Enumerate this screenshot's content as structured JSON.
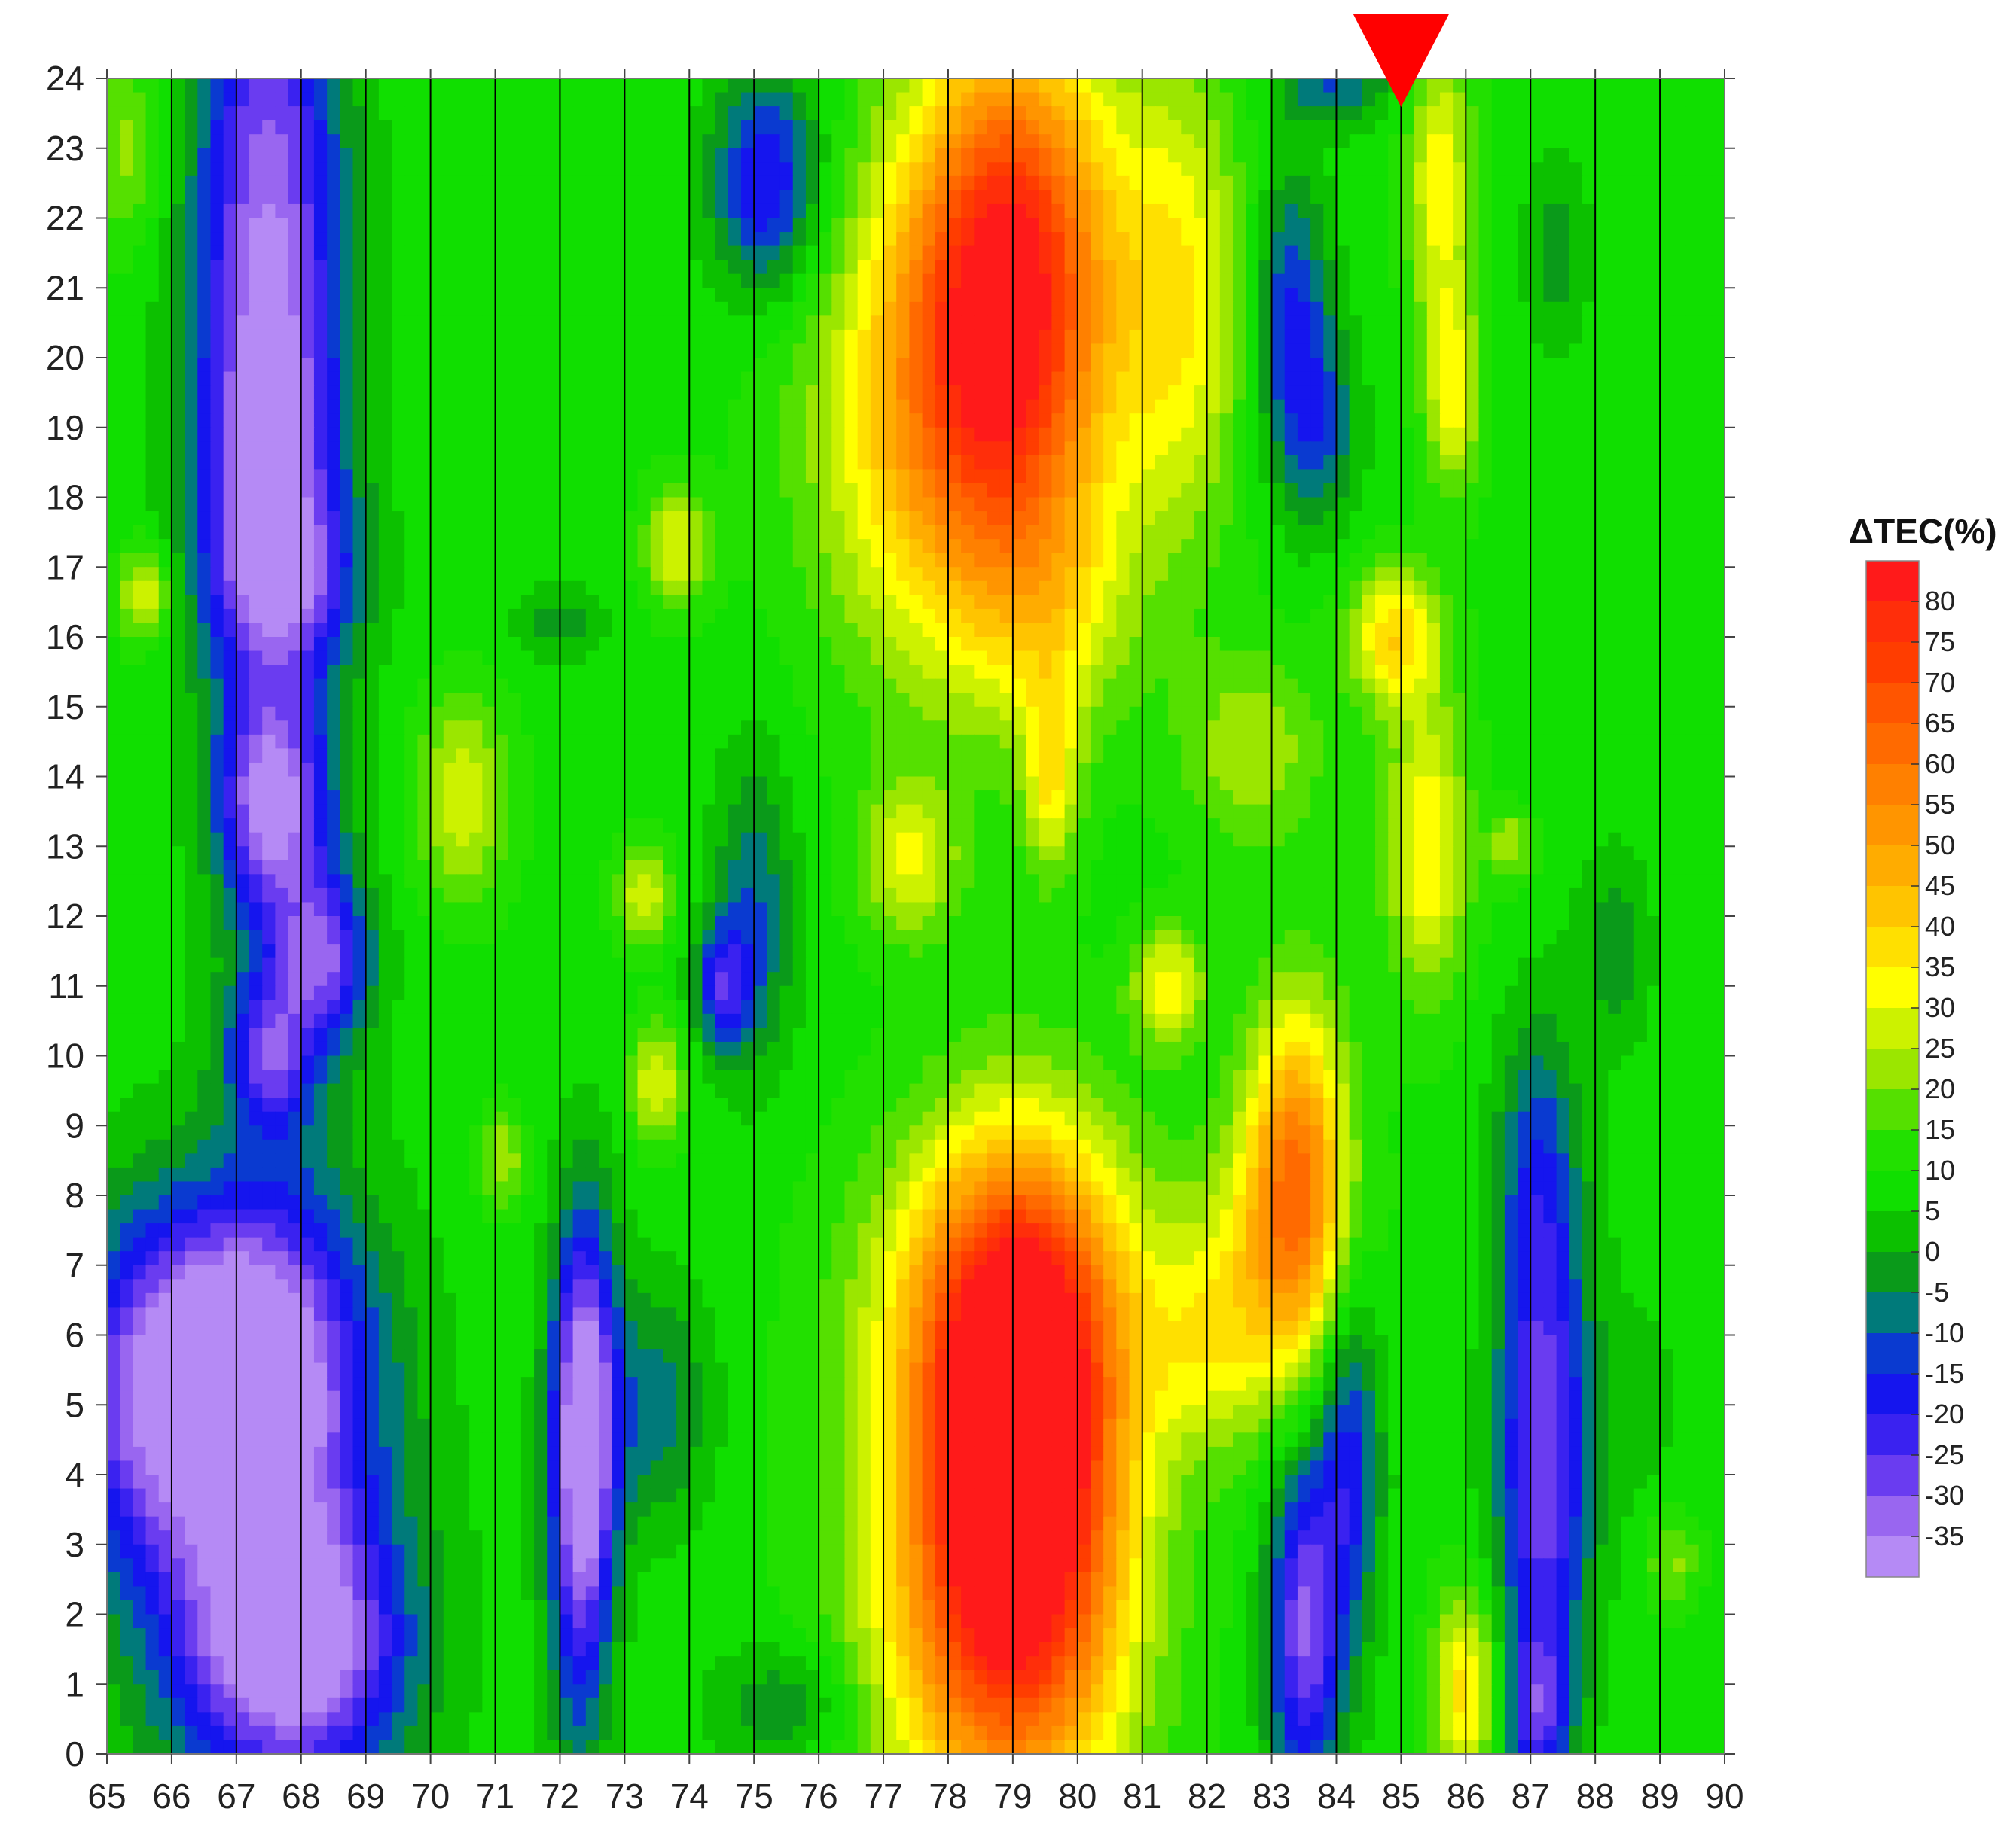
{
  "chart_data": {
    "type": "heatmap",
    "subtype": "filled-contour",
    "title": "",
    "xlabel": "",
    "ylabel": "",
    "xlim": [
      65,
      90
    ],
    "ylim": [
      0,
      24
    ],
    "x_ticks": [
      "65",
      "66",
      "67",
      "68",
      "69",
      "70",
      "71",
      "72",
      "73",
      "74",
      "75",
      "76",
      "77",
      "78",
      "79",
      "80",
      "81",
      "82",
      "83",
      "84",
      "85",
      "86",
      "87",
      "88",
      "89",
      "90"
    ],
    "y_ticks": [
      "0",
      "1",
      "2",
      "3",
      "4",
      "5",
      "6",
      "7",
      "8",
      "9",
      "10",
      "11",
      "12",
      "13",
      "14",
      "15",
      "16",
      "17",
      "18",
      "19",
      "20",
      "21",
      "22",
      "23",
      "24"
    ],
    "vertical_gridlines_at": [
      66,
      67,
      68,
      69,
      70,
      71,
      72,
      73,
      74,
      75,
      76,
      77,
      78,
      79,
      80,
      81,
      82,
      83,
      84,
      85,
      86,
      87,
      88,
      89
    ],
    "background_value": 8,
    "marker": {
      "shape": "down-triangle",
      "x": 85,
      "color": "#ff0000"
    },
    "colorbar": {
      "title": "ΔTEC(%)",
      "labels": [
        "80",
        "75",
        "70",
        "65",
        "60",
        "55",
        "50",
        "45",
        "40",
        "35",
        "30",
        "25",
        "20",
        "15",
        "10",
        "5",
        "0",
        "-5",
        "-10",
        "-15",
        "-20",
        "-25",
        "-30",
        "-35"
      ],
      "bands": [
        {
          "min": 80,
          "color": "#ff1a1a"
        },
        {
          "min": 75,
          "color": "#ff2e0a"
        },
        {
          "min": 70,
          "color": "#ff3d00"
        },
        {
          "min": 65,
          "color": "#ff5500"
        },
        {
          "min": 60,
          "color": "#ff6a00"
        },
        {
          "min": 55,
          "color": "#ff8000"
        },
        {
          "min": 50,
          "color": "#ff9500"
        },
        {
          "min": 45,
          "color": "#ffac00"
        },
        {
          "min": 40,
          "color": "#ffc400"
        },
        {
          "min": 35,
          "color": "#ffe000"
        },
        {
          "min": 30,
          "color": "#ffff00"
        },
        {
          "min": 25,
          "color": "#ccf200"
        },
        {
          "min": 20,
          "color": "#9be600"
        },
        {
          "min": 15,
          "color": "#55e000"
        },
        {
          "min": 10,
          "color": "#22e000"
        },
        {
          "min": 5,
          "color": "#10df00"
        },
        {
          "min": 0,
          "color": "#0cc000"
        },
        {
          "min": -5,
          "color": "#0a9a1a"
        },
        {
          "min": -10,
          "color": "#007a7a"
        },
        {
          "min": -15,
          "color": "#0a3ad0"
        },
        {
          "min": -20,
          "color": "#1515ee"
        },
        {
          "min": -25,
          "color": "#3a22f0"
        },
        {
          "min": -30,
          "color": "#6a3cf0"
        },
        {
          "min": -35,
          "color": "#9966f0"
        },
        {
          "min": -1000,
          "color": "#b58af5"
        }
      ]
    },
    "features": [
      {
        "x": 67.5,
        "y": 21.5,
        "sx": 0.8,
        "sy": 4.0,
        "value": -34
      },
      {
        "x": 67.5,
        "y": 18.0,
        "sx": 0.8,
        "sy": 2.0,
        "value": -10
      },
      {
        "x": 67.8,
        "y": 16.9,
        "sx": 0.8,
        "sy": 0.8,
        "value": -10
      },
      {
        "x": 67.5,
        "y": 13.6,
        "sx": 0.55,
        "sy": 1.0,
        "value": -22
      },
      {
        "x": 68.4,
        "y": 11.4,
        "sx": 0.5,
        "sy": 0.8,
        "value": -20
      },
      {
        "x": 67.5,
        "y": 10.0,
        "sx": 0.45,
        "sy": 0.7,
        "value": -18
      },
      {
        "x": 67.8,
        "y": 12.3,
        "sx": 0.7,
        "sy": 2.5,
        "value": -8
      },
      {
        "x": 67.1,
        "y": 5.6,
        "sx": 1.2,
        "sy": 1.6,
        "value": -34
      },
      {
        "x": 67.9,
        "y": 1.5,
        "sx": 1.2,
        "sy": 1.3,
        "value": -30
      },
      {
        "x": 67.5,
        "y": 3.5,
        "sx": 1.4,
        "sy": 3.0,
        "value": -17
      },
      {
        "x": 65.5,
        "y": 5.0,
        "sx": 1.0,
        "sy": 1.8,
        "value": -15
      },
      {
        "x": 72.4,
        "y": 5.0,
        "sx": 0.35,
        "sy": 2.0,
        "value": -30
      },
      {
        "x": 72.3,
        "y": 3.0,
        "sx": 0.35,
        "sy": 2.5,
        "value": -17
      },
      {
        "x": 73.5,
        "y": 5.0,
        "sx": 0.6,
        "sy": 1.2,
        "value": -8
      },
      {
        "x": 75.2,
        "y": 22.5,
        "sx": 0.6,
        "sy": 1.1,
        "value": -22
      },
      {
        "x": 75.0,
        "y": 12.0,
        "sx": 0.45,
        "sy": 1.6,
        "value": -10
      },
      {
        "x": 74.5,
        "y": 11.0,
        "sx": 0.3,
        "sy": 0.6,
        "value": -18
      },
      {
        "x": 79.0,
        "y": 21.3,
        "sx": 1.1,
        "sy": 2.5,
        "value": 72
      },
      {
        "x": 78.0,
        "y": 19.0,
        "sx": 1.4,
        "sy": 2.5,
        "value": 45
      },
      {
        "x": 81.6,
        "y": 20.8,
        "sx": 0.7,
        "sy": 2.4,
        "value": 33
      },
      {
        "x": 79.6,
        "y": 16.5,
        "sx": 0.9,
        "sy": 1.3,
        "value": 25
      },
      {
        "x": 79.1,
        "y": 4.6,
        "sx": 1.0,
        "sy": 2.5,
        "value": 78
      },
      {
        "x": 78.8,
        "y": 2.0,
        "sx": 1.4,
        "sy": 2.5,
        "value": 55
      },
      {
        "x": 79.0,
        "y": 6.5,
        "sx": 1.5,
        "sy": 1.8,
        "value": 42
      },
      {
        "x": 83.4,
        "y": 8.5,
        "sx": 0.55,
        "sy": 1.7,
        "value": 52
      },
      {
        "x": 83.0,
        "y": 6.8,
        "sx": 0.9,
        "sy": 1.5,
        "value": 30
      },
      {
        "x": 83.5,
        "y": 1.8,
        "sx": 0.4,
        "sy": 1.8,
        "value": -30
      },
      {
        "x": 84.2,
        "y": 4.5,
        "sx": 0.35,
        "sy": 2.0,
        "value": -18
      },
      {
        "x": 87.2,
        "y": 4.2,
        "sx": 0.5,
        "sy": 2.6,
        "value": -30
      },
      {
        "x": 87.1,
        "y": 8.5,
        "sx": 0.45,
        "sy": 1.5,
        "value": -8
      },
      {
        "x": 87.1,
        "y": 0.6,
        "sx": 0.35,
        "sy": 0.8,
        "value": -16
      },
      {
        "x": 83.3,
        "y": 20.5,
        "sx": 0.4,
        "sy": 1.5,
        "value": -17
      },
      {
        "x": 83.8,
        "y": 19.0,
        "sx": 0.4,
        "sy": 1.0,
        "value": -8
      },
      {
        "x": 84.0,
        "y": 23.9,
        "sx": 0.6,
        "sy": 0.4,
        "value": -10
      },
      {
        "x": 85.4,
        "y": 13.0,
        "sx": 0.45,
        "sy": 1.5,
        "value": 35
      },
      {
        "x": 84.9,
        "y": 16.0,
        "sx": 0.5,
        "sy": 0.7,
        "value": 38
      },
      {
        "x": 85.6,
        "y": 22.5,
        "sx": 0.35,
        "sy": 1.5,
        "value": 33
      },
      {
        "x": 85.8,
        "y": 19.5,
        "sx": 0.3,
        "sy": 1.0,
        "value": 32
      },
      {
        "x": 86.0,
        "y": 0.9,
        "sx": 0.35,
        "sy": 1.0,
        "value": 38
      },
      {
        "x": 77.4,
        "y": 12.8,
        "sx": 0.55,
        "sy": 0.8,
        "value": 30
      },
      {
        "x": 79.6,
        "y": 14.0,
        "sx": 0.3,
        "sy": 1.0,
        "value": 33
      },
      {
        "x": 81.4,
        "y": 11.0,
        "sx": 0.4,
        "sy": 0.6,
        "value": 33
      },
      {
        "x": 70.5,
        "y": 13.7,
        "sx": 0.5,
        "sy": 1.0,
        "value": 30
      },
      {
        "x": 73.8,
        "y": 17.3,
        "sx": 0.35,
        "sy": 0.6,
        "value": 30
      },
      {
        "x": 73.3,
        "y": 12.3,
        "sx": 0.3,
        "sy": 0.5,
        "value": 30
      },
      {
        "x": 73.5,
        "y": 9.6,
        "sx": 0.3,
        "sy": 0.6,
        "value": 30
      },
      {
        "x": 65.6,
        "y": 16.6,
        "sx": 0.3,
        "sy": 0.5,
        "value": 30
      },
      {
        "x": 65.3,
        "y": 23.0,
        "sx": 0.4,
        "sy": 1.0,
        "value": 22
      },
      {
        "x": 82.7,
        "y": 14.4,
        "sx": 0.8,
        "sy": 1.0,
        "value": 24
      },
      {
        "x": 81.9,
        "y": 5.8,
        "sx": 0.6,
        "sy": 1.0,
        "value": 20
      },
      {
        "x": 87.4,
        "y": 21.5,
        "sx": 0.35,
        "sy": 1.0,
        "value": -3
      },
      {
        "x": 72.0,
        "y": 16.2,
        "sx": 0.5,
        "sy": 0.35,
        "value": -3
      },
      {
        "x": 86.7,
        "y": 13.0,
        "sx": 0.25,
        "sy": 0.35,
        "value": 25
      },
      {
        "x": 71.1,
        "y": 8.5,
        "sx": 0.25,
        "sy": 0.5,
        "value": 25
      },
      {
        "x": 75.5,
        "y": 0.7,
        "sx": 0.8,
        "sy": 0.6,
        "value": -5
      },
      {
        "x": 88.3,
        "y": 11.5,
        "sx": 0.4,
        "sy": 1.0,
        "value": -3
      },
      {
        "x": 89.2,
        "y": 2.8,
        "sx": 0.3,
        "sy": 0.5,
        "value": 22
      },
      {
        "x": 88.7,
        "y": 5.0,
        "sx": 0.7,
        "sy": 1.5,
        "value": 4
      }
    ]
  }
}
